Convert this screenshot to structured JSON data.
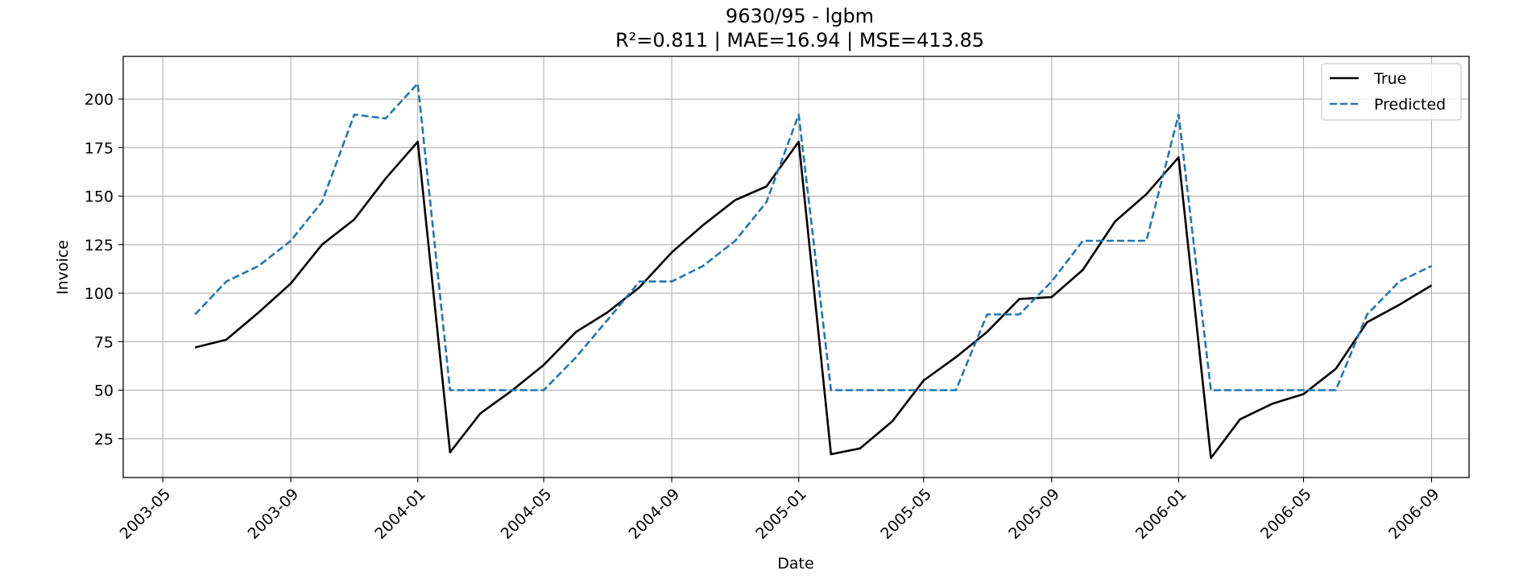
{
  "chart_data": {
    "type": "line",
    "title": "9630/95 - lgbm",
    "subtitle": "R²=0.811 | MAE=16.94 | MSE=413.85",
    "xlabel": "Date",
    "ylabel": "Invoice",
    "x_ticks": [
      "2003-05",
      "2003-09",
      "2004-01",
      "2004-05",
      "2004-09",
      "2005-01",
      "2005-05",
      "2005-09",
      "2006-01",
      "2006-05",
      "2006-09"
    ],
    "y_ticks": [
      25,
      50,
      75,
      100,
      125,
      150,
      175,
      200
    ],
    "xlim": [
      "2003-03-24",
      "2006-10-07"
    ],
    "ylim": [
      5,
      222
    ],
    "grid": true,
    "legend_position": "top-right",
    "x": [
      "2003-06",
      "2003-07",
      "2003-08",
      "2003-09",
      "2003-10",
      "2003-11",
      "2003-12",
      "2004-01",
      "2004-02",
      "2004-03",
      "2004-04",
      "2004-05",
      "2004-06",
      "2004-07",
      "2004-08",
      "2004-09",
      "2004-10",
      "2004-11",
      "2004-12",
      "2005-01",
      "2005-02",
      "2005-03",
      "2005-04",
      "2005-05",
      "2005-06",
      "2005-07",
      "2005-08",
      "2005-09",
      "2005-10",
      "2005-11",
      "2005-12",
      "2006-01",
      "2006-02",
      "2006-03",
      "2006-04",
      "2006-05",
      "2006-06",
      "2006-07",
      "2006-08",
      "2006-09"
    ],
    "series": [
      {
        "name": "True",
        "color": "#000000",
        "dash": "solid",
        "values": [
          72,
          76,
          90,
          105,
          125,
          138,
          159,
          178,
          18,
          38,
          50,
          63,
          80,
          90,
          103,
          121,
          135,
          148,
          155,
          178,
          17,
          20,
          34,
          55,
          67,
          80,
          97,
          98,
          112,
          137,
          151,
          170,
          15,
          35,
          43,
          48,
          61,
          85,
          94,
          104
        ]
      },
      {
        "name": "Predicted",
        "color": "#1f77b4",
        "dash": "dashed",
        "values": [
          89,
          106,
          114,
          127,
          147,
          192,
          190,
          208,
          50,
          50,
          50,
          50,
          67,
          86,
          106,
          106,
          114,
          127,
          147,
          192,
          50,
          50,
          50,
          50,
          50,
          89,
          89,
          106,
          127,
          127,
          127,
          192,
          50,
          50,
          50,
          50,
          50,
          89,
          106,
          114
        ]
      }
    ]
  }
}
